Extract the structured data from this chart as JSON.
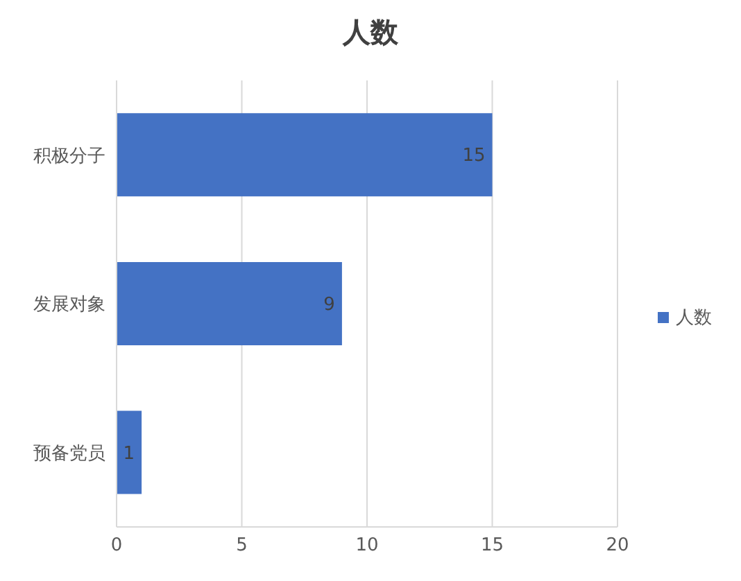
{
  "chart_data": {
    "type": "bar",
    "title": "人数",
    "orientation": "horizontal",
    "categories": [
      "积极分子",
      "发展对象",
      "预备党员"
    ],
    "series": [
      {
        "name": "人数",
        "color": "#4472c4",
        "values": [
          15,
          9,
          1
        ]
      }
    ],
    "xlim": [
      0,
      20
    ],
    "xticks": [
      0,
      5,
      10,
      15,
      20
    ],
    "grid": "x",
    "legend": "right",
    "data_labels": true
  }
}
